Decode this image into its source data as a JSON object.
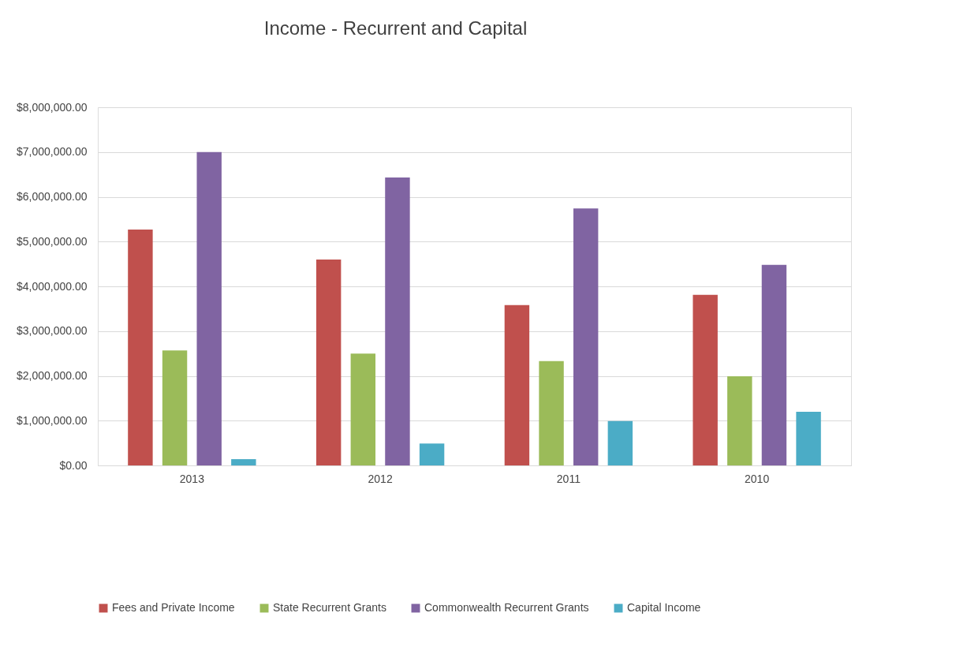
{
  "chart_data": {
    "type": "bar",
    "title": "Income - Recurrent  and Capital",
    "categories": [
      "2013",
      "2012",
      "2011",
      "2010"
    ],
    "series": [
      {
        "name": "Fees and Private Income",
        "color": "#c0504d",
        "values": [
          5270000,
          4600000,
          3580000,
          3810000
        ]
      },
      {
        "name": "State Recurrent Grants",
        "color": "#9bbb59",
        "values": [
          2570000,
          2500000,
          2330000,
          1990000
        ]
      },
      {
        "name": "Commonwealth Recurrent Grants",
        "color": "#8064a2",
        "values": [
          7000000,
          6430000,
          5740000,
          4480000
        ]
      },
      {
        "name": "Capital Income",
        "color": "#4bacc6",
        "values": [
          140000,
          490000,
          990000,
          1200000
        ]
      }
    ],
    "ylim": [
      0,
      8000000
    ],
    "yticks": [
      {
        "value": 0,
        "label": "$0.00"
      },
      {
        "value": 1000000,
        "label": "$1,000,000.00"
      },
      {
        "value": 2000000,
        "label": "$2,000,000.00"
      },
      {
        "value": 3000000,
        "label": "$3,000,000.00"
      },
      {
        "value": 4000000,
        "label": "$4,000,000.00"
      },
      {
        "value": 5000000,
        "label": "$5,000,000.00"
      },
      {
        "value": 6000000,
        "label": "$6,000,000.00"
      },
      {
        "value": 7000000,
        "label": "$7,000,000.00"
      },
      {
        "value": 8000000,
        "label": "$8,000,000.00"
      }
    ],
    "grid": "y",
    "legend": "bottom"
  }
}
